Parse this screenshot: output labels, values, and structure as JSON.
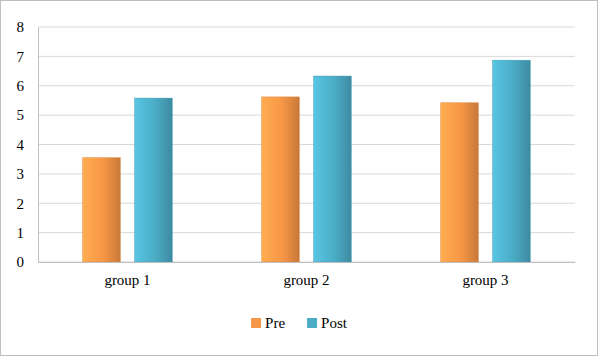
{
  "chart_data": {
    "type": "bar",
    "categories": [
      "group 1",
      "group 2",
      "group 3"
    ],
    "series": [
      {
        "name": "Pre",
        "color": "#f79646",
        "values": [
          3.55,
          5.62,
          5.42
        ]
      },
      {
        "name": "Post",
        "color": "#4bacc6",
        "values": [
          5.58,
          6.33,
          6.87
        ]
      }
    ],
    "ylim": [
      0,
      8
    ],
    "yticks": [
      0,
      1,
      2,
      3,
      4,
      5,
      6,
      7,
      8
    ],
    "grid": true,
    "legend": "bottom"
  }
}
